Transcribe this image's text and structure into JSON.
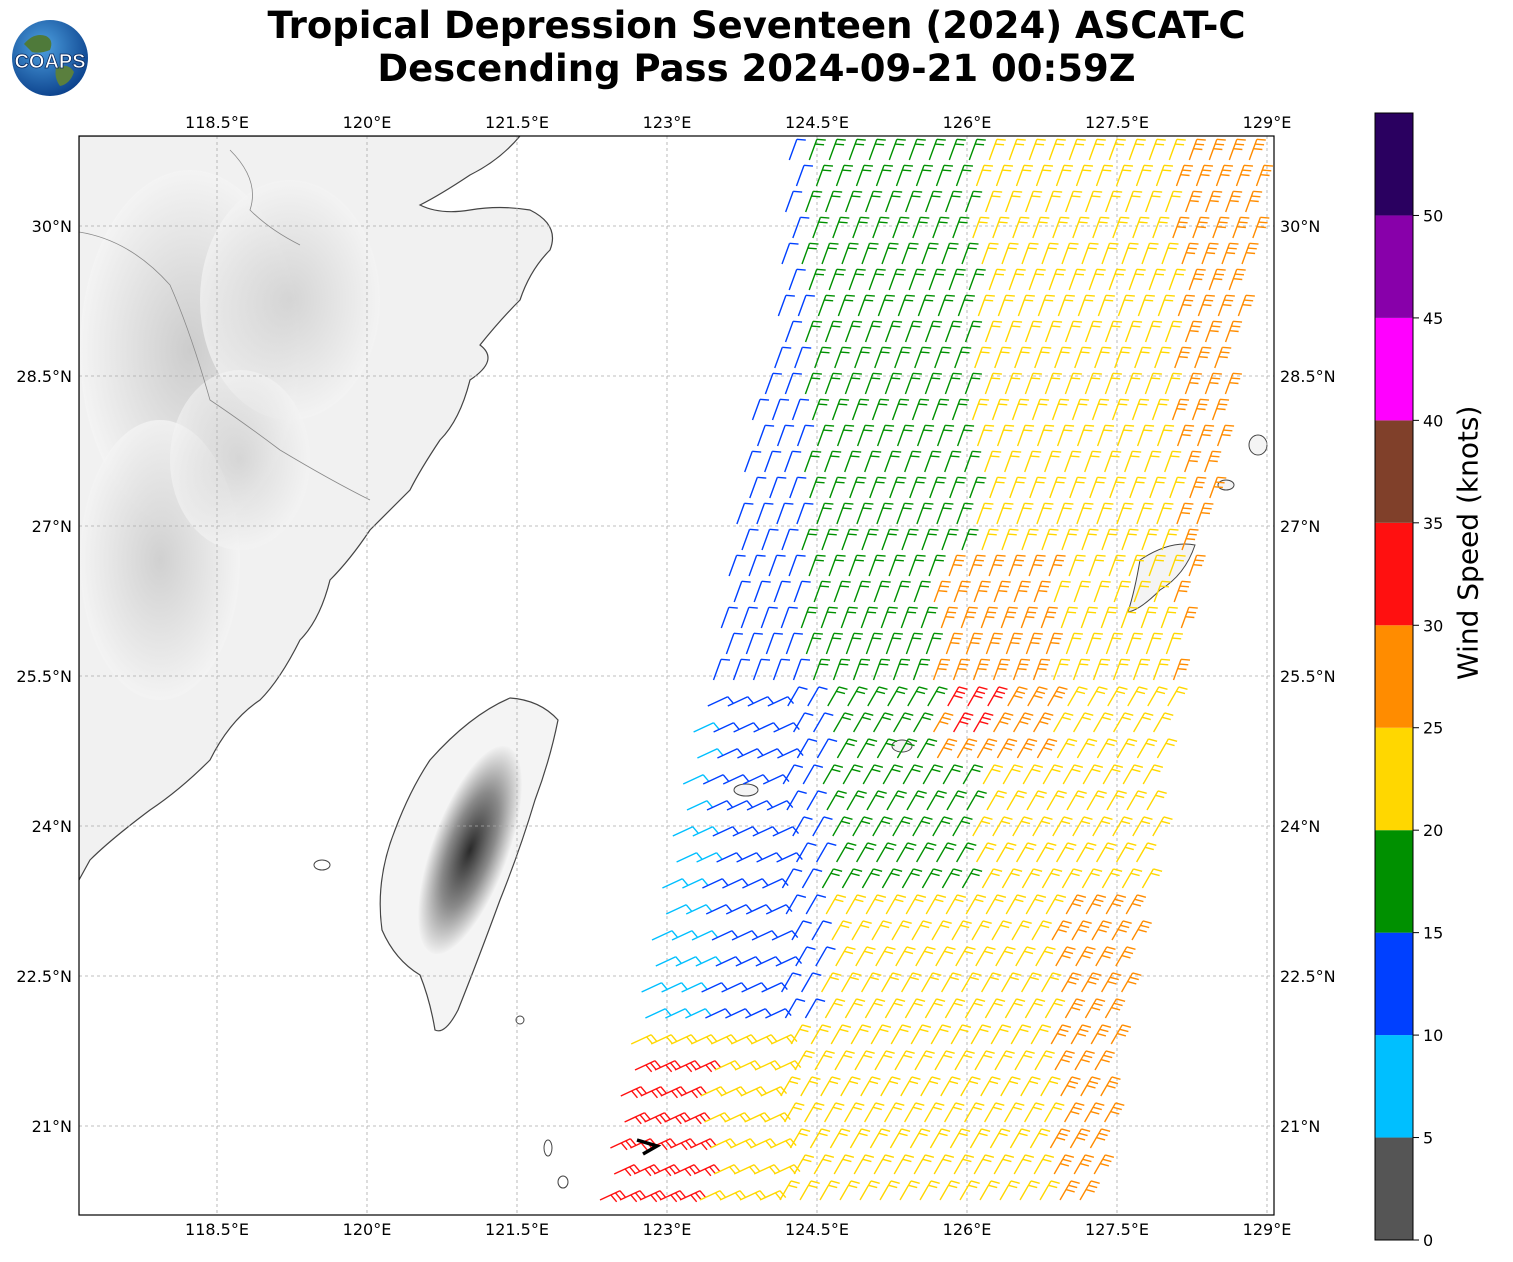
{
  "title": {
    "line1": "Tropical Depression Seventeen (2024) ASCAT-C",
    "line2": "Descending Pass 2024-09-21 00:59Z"
  },
  "logo": {
    "text": "COAPS",
    "icon": "globe-logo"
  },
  "map": {
    "lon_labels": [
      "118.5°E",
      "120°E",
      "121.5°E",
      "123°E",
      "124.5°E",
      "126°E",
      "127.5°E",
      "129°E"
    ],
    "lat_labels": [
      "30°N",
      "28.5°N",
      "27°N",
      "25.5°N",
      "24°N",
      "22.5°N",
      "21°N"
    ],
    "lon_values": [
      118.5,
      120,
      121.5,
      123,
      124.5,
      126,
      127.5,
      129
    ],
    "lat_values": [
      30,
      28.5,
      27,
      25.5,
      24,
      22.5,
      21
    ],
    "grid": true,
    "land_shading": "grayscale terrain",
    "storm_marker": {
      "lon": 122.9,
      "lat": 20.8,
      "color": "#000000"
    }
  },
  "colorbar": {
    "label": "Wind Speed (knots)",
    "ticks": [
      "0",
      "5",
      "10",
      "15",
      "20",
      "25",
      "30",
      "35",
      "40",
      "45",
      "50"
    ],
    "bins": [
      {
        "min": 0,
        "max": 5,
        "color": "#555555"
      },
      {
        "min": 5,
        "max": 10,
        "color": "#00bfff"
      },
      {
        "min": 10,
        "max": 15,
        "color": "#0040ff"
      },
      {
        "min": 15,
        "max": 20,
        "color": "#009000"
      },
      {
        "min": 20,
        "max": 25,
        "color": "#ffd700"
      },
      {
        "min": 25,
        "max": 30,
        "color": "#ff8c00"
      },
      {
        "min": 30,
        "max": 35,
        "color": "#ff1010"
      },
      {
        "min": 35,
        "max": 40,
        "color": "#80402a"
      },
      {
        "min": 40,
        "max": 45,
        "color": "#ff00ff"
      },
      {
        "min": 45,
        "max": 50,
        "color": "#8800aa"
      },
      {
        "min": 50,
        "max": 55,
        "color": "#2a0060"
      }
    ]
  }
}
